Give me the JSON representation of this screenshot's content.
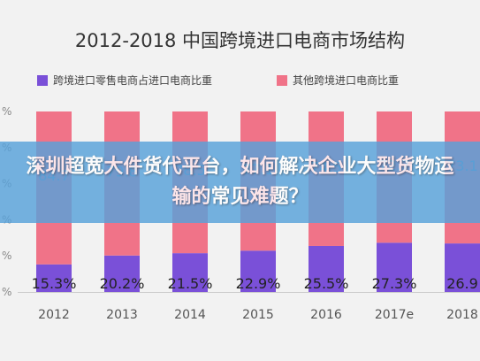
{
  "banner": {
    "text": "深圳超宽大件货代平台，如何解决企业大型货物运输的常见难题？"
  },
  "colors": {
    "import_share": "#7a50d8",
    "other_share": "#f07388",
    "banner": "#58a2da"
  },
  "chart_data": {
    "type": "bar",
    "stacked": true,
    "title": "2012-2018 中国跨境进口电商市场结构",
    "categories": [
      "2012",
      "2013",
      "2014",
      "2015",
      "2016",
      "2017e",
      "2018"
    ],
    "series": [
      {
        "name": "跨境进口零售电商占进口电商比重",
        "values": [
          15.3,
          20.2,
          21.5,
          22.9,
          25.5,
          27.3,
          26.9
        ],
        "labels": [
          "15.3%",
          "20.2%",
          "21.5%",
          "22.9%",
          "25.5%",
          "27.3%",
          "26.9"
        ]
      },
      {
        "name": "其他跨境进口电商比重",
        "values": [
          84.7,
          79.8,
          78.5,
          77.1,
          74.5,
          72.7,
          73.1
        ],
        "labels": [
          "84.7",
          "79.8",
          "78.5",
          "77.1",
          "74.5",
          "72.7",
          "73.1"
        ]
      }
    ],
    "ylim": [
      0,
      100
    ],
    "stack_ticks": [
      "%",
      "%",
      "%",
      "%",
      "%",
      "%"
    ],
    "grid": false,
    "legend_position": "top"
  }
}
